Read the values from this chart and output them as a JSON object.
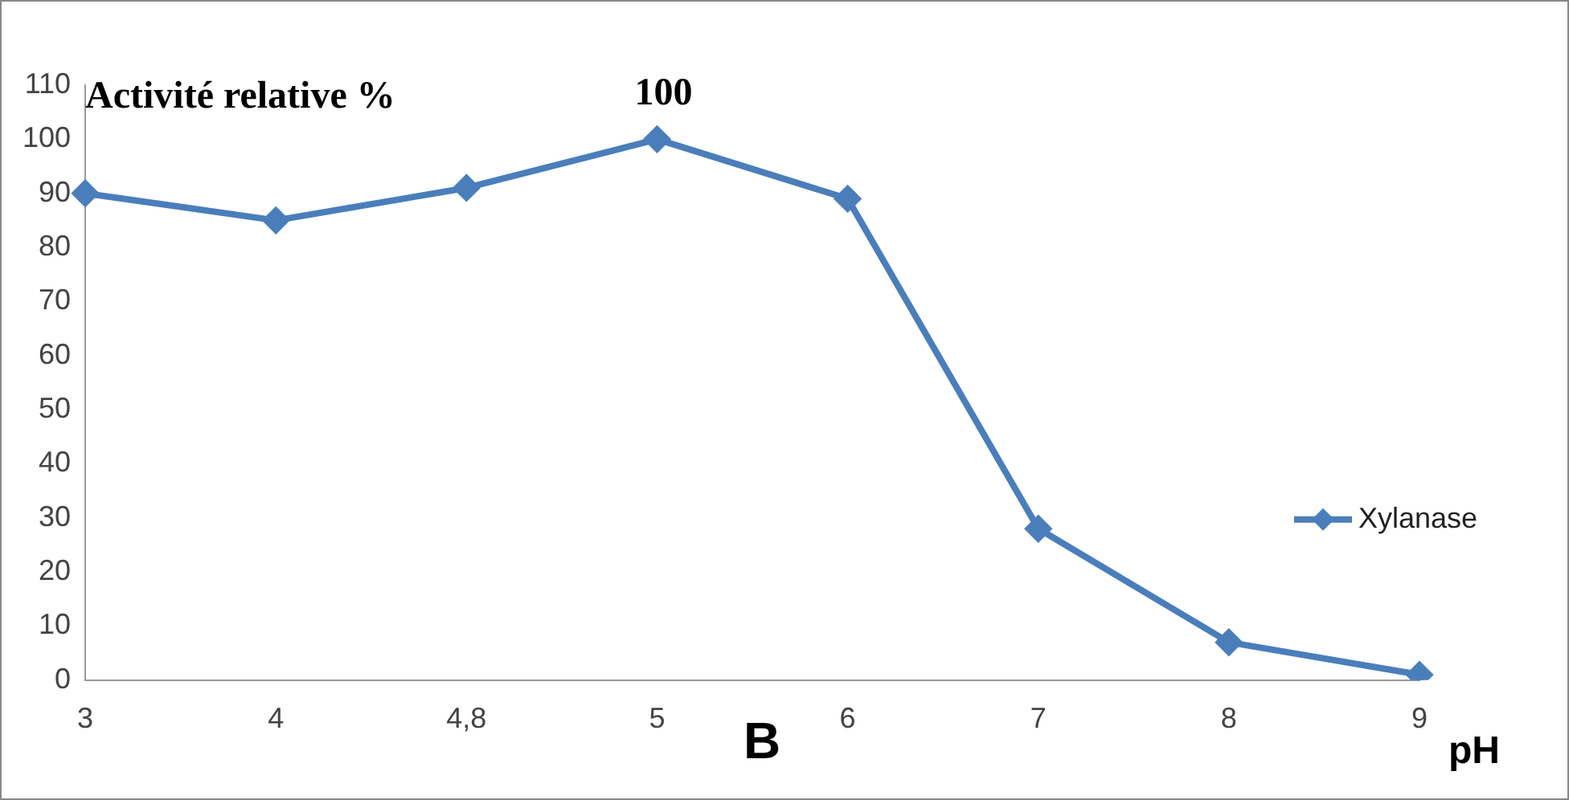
{
  "chart_data": {
    "type": "line",
    "ylabel": "Activité relative %",
    "xlabel": "pH",
    "categories": [
      "3",
      "4",
      "4,8",
      "5",
      "6",
      "7",
      "8",
      "9"
    ],
    "series": [
      {
        "name": "Xylanase",
        "color": "#4a7ebb",
        "values": [
          90,
          85,
          91,
          100,
          89,
          28,
          7,
          1
        ],
        "value_labels": [
          null,
          null,
          null,
          "100",
          null,
          null,
          null,
          null
        ]
      }
    ],
    "ylim": [
      0,
      110
    ],
    "yticks": [
      0,
      10,
      20,
      30,
      40,
      50,
      60,
      70,
      80,
      90,
      100,
      110
    ],
    "grid": false,
    "legend": "right",
    "marker": "diamond",
    "line_style": "solid",
    "annotations": [
      "B"
    ]
  }
}
